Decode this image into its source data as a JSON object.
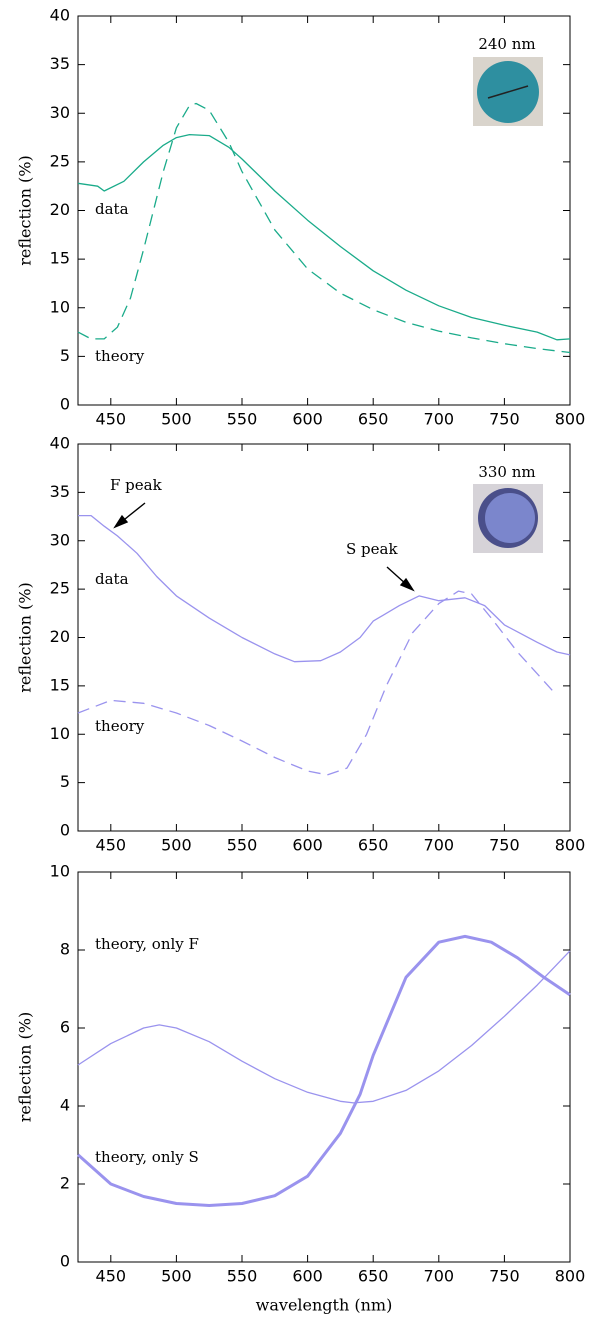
{
  "chart_data": [
    {
      "type": "line",
      "ylabel": "reflection (%)",
      "inset_label": "240 nm",
      "xlim": [
        425,
        800
      ],
      "xticks": [
        450,
        500,
        550,
        600,
        650,
        700,
        750,
        800
      ],
      "ylim": [
        0,
        40
      ],
      "yticks": [
        0,
        5,
        10,
        15,
        20,
        25,
        30,
        35,
        40
      ],
      "grid": false,
      "series": [
        {
          "name": "data",
          "color": "#1aab8a",
          "dashed": false,
          "line_width": 1.3,
          "x": [
            425,
            440,
            445,
            460,
            475,
            490,
            500,
            510,
            525,
            540,
            550,
            575,
            600,
            625,
            650,
            675,
            700,
            725,
            750,
            775,
            790,
            800
          ],
          "values": [
            22.8,
            22.5,
            22,
            23,
            25,
            26.7,
            27.5,
            27.8,
            27.7,
            26.5,
            25.3,
            22,
            19,
            16.3,
            13.8,
            11.8,
            10.2,
            9,
            8.2,
            7.5,
            6.7,
            6.8
          ]
        },
        {
          "name": "theory",
          "color": "#1aab8a",
          "dashed": true,
          "line_width": 1.3,
          "x": [
            425,
            435,
            445,
            455,
            465,
            475,
            490,
            500,
            510,
            515,
            525,
            540,
            550,
            575,
            600,
            625,
            650,
            675,
            700,
            725,
            750,
            775,
            800
          ],
          "values": [
            7.5,
            6.8,
            6.8,
            8,
            11,
            16,
            24,
            28.5,
            30.8,
            31,
            30.3,
            27,
            24,
            18,
            14,
            11.5,
            9.8,
            8.5,
            7.6,
            6.9,
            6.3,
            5.8,
            5.4
          ]
        }
      ]
    },
    {
      "type": "line",
      "ylabel": "reflection (%)",
      "inset_label": "330 nm",
      "annotations": [
        "F peak",
        "S peak"
      ],
      "xlim": [
        425,
        800
      ],
      "xticks": [
        450,
        500,
        550,
        600,
        650,
        700,
        750,
        800
      ],
      "ylim": [
        0,
        40
      ],
      "yticks": [
        0,
        5,
        10,
        15,
        20,
        25,
        30,
        35,
        40
      ],
      "grid": false,
      "series": [
        {
          "name": "data",
          "color": "#9a93ee",
          "dashed": false,
          "line_width": 1.3,
          "x": [
            425,
            435,
            445,
            455,
            470,
            485,
            500,
            525,
            550,
            575,
            590,
            610,
            625,
            640,
            650,
            670,
            685,
            700,
            720,
            735,
            750,
            775,
            790,
            800
          ],
          "values": [
            32.6,
            32.6,
            31.5,
            30.5,
            28.7,
            26.3,
            24.3,
            22,
            20,
            18.3,
            17.5,
            17.6,
            18.5,
            20,
            21.7,
            23.3,
            24.3,
            23.8,
            24.1,
            23.3,
            21.3,
            19.5,
            18.5,
            18.2
          ]
        },
        {
          "name": "theory",
          "color": "#9a93ee",
          "dashed": true,
          "line_width": 1.3,
          "x": [
            425,
            450,
            475,
            500,
            525,
            550,
            575,
            600,
            615,
            630,
            645,
            660,
            680,
            700,
            715,
            725,
            740,
            760,
            780,
            790
          ],
          "values": [
            12.2,
            13.5,
            13.2,
            12.2,
            10.9,
            9.3,
            7.6,
            6.2,
            5.8,
            6.5,
            10,
            15,
            20.5,
            23.5,
            24.8,
            24.5,
            22,
            18.5,
            15.5,
            14
          ]
        }
      ]
    },
    {
      "type": "line",
      "ylabel": "reflection (%)",
      "xlabel": "wavelength (nm)",
      "xlim": [
        425,
        800
      ],
      "xticks": [
        450,
        500,
        550,
        600,
        650,
        700,
        750,
        800
      ],
      "ylim": [
        0,
        10
      ],
      "yticks": [
        0,
        2,
        4,
        6,
        8,
        10
      ],
      "grid": false,
      "series": [
        {
          "name": "theory, only F",
          "color": "#9a93ee",
          "dashed": false,
          "line_width": 1.3,
          "x": [
            425,
            450,
            475,
            487,
            500,
            525,
            550,
            575,
            600,
            625,
            635,
            650,
            675,
            700,
            725,
            750,
            775,
            800
          ],
          "values": [
            5.05,
            5.6,
            6.0,
            6.08,
            6.0,
            5.65,
            5.15,
            4.7,
            4.35,
            4.12,
            4.08,
            4.12,
            4.4,
            4.9,
            5.55,
            6.3,
            7.1,
            7.98
          ]
        },
        {
          "name": "theory, only S",
          "color": "#9a93ee",
          "dashed": false,
          "line_width": 3,
          "x": [
            425,
            450,
            475,
            500,
            525,
            550,
            575,
            600,
            625,
            640,
            650,
            675,
            700,
            720,
            740,
            760,
            780,
            800
          ],
          "values": [
            2.75,
            2.0,
            1.68,
            1.5,
            1.45,
            1.5,
            1.7,
            2.2,
            3.3,
            4.3,
            5.3,
            7.3,
            8.2,
            8.35,
            8.2,
            7.8,
            7.3,
            6.85
          ]
        }
      ]
    }
  ]
}
